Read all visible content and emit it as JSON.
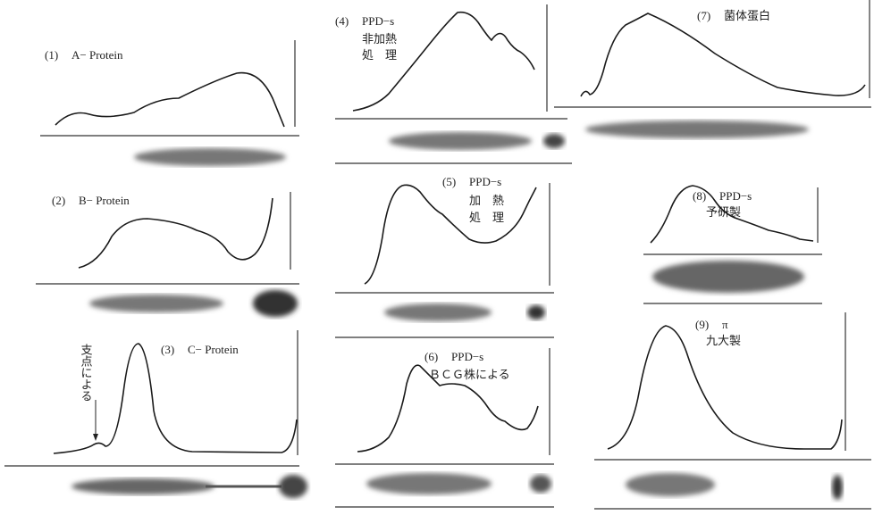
{
  "panels": [
    {
      "number": "(1)",
      "title": "A− Protein"
    },
    {
      "number": "(2)",
      "title": "B− Protein"
    },
    {
      "number": "(3)",
      "title": "C− Protein",
      "annotation": "支点による"
    },
    {
      "number": "(4)",
      "title": "PPD−s",
      "lines": [
        "非加熱",
        "処　理"
      ]
    },
    {
      "number": "(5)",
      "title": "PPD−s",
      "lines": [
        "加　熱",
        "処　理"
      ]
    },
    {
      "number": "(6)",
      "title": "PPD−s",
      "lines": [
        "ＢＣＧ株による"
      ]
    },
    {
      "number": "(7)",
      "title": "菌体蛋白"
    },
    {
      "number": "(8)",
      "title": "PPD−s",
      "lines": [
        "予研製"
      ]
    },
    {
      "number": "(9)",
      "title": "π",
      "lines": [
        "九大製"
      ]
    }
  ]
}
